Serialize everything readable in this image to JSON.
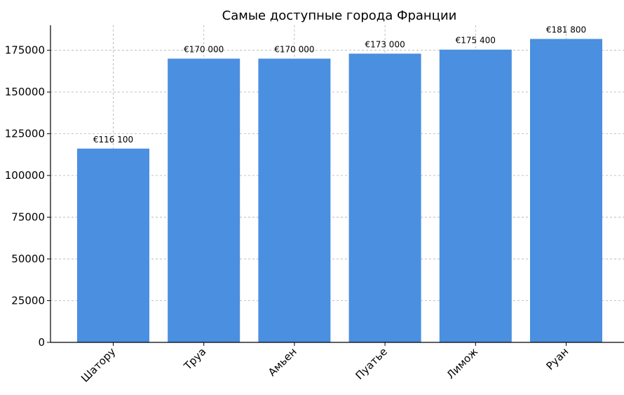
{
  "chart_data": {
    "type": "bar",
    "title": "Самые доступные города Франции",
    "xlabel": "",
    "ylabel": "",
    "categories": [
      "Шатору",
      "Труа",
      "Амьен",
      "Пуатье",
      "Лимож",
      "Руан"
    ],
    "values": [
      116100,
      170000,
      170000,
      173000,
      175400,
      181800
    ],
    "data_labels": [
      "€116 100",
      "€170 000",
      "€170 000",
      "€173 000",
      "€175 400",
      "€181 800"
    ],
    "ylim": [
      0,
      190000
    ],
    "yticks": [
      0,
      25000,
      50000,
      75000,
      100000,
      125000,
      150000,
      175000
    ],
    "ytick_labels": [
      "0",
      "25000",
      "50000",
      "75000",
      "100000",
      "125000",
      "150000",
      "175000"
    ],
    "grid": true,
    "bar_color": "#4a8fe0"
  }
}
